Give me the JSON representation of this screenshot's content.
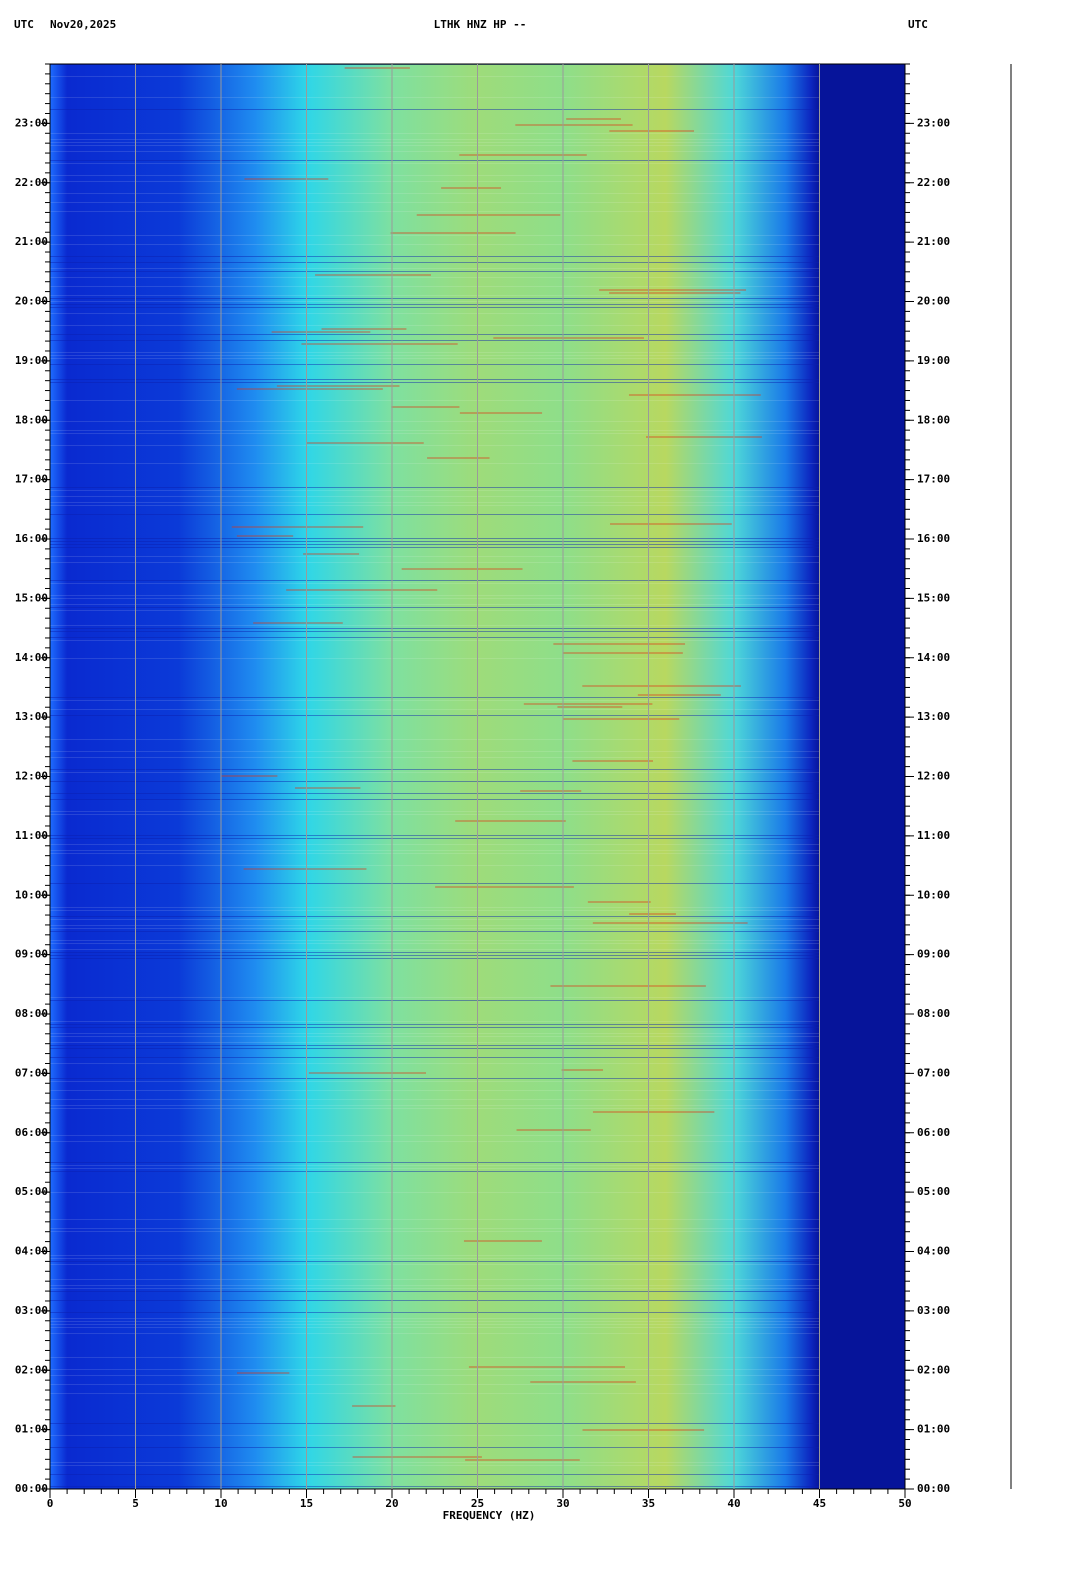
{
  "chart_data": {
    "type": "spectrogram",
    "title": "LTHK HNZ HP --",
    "left_label": "UTC",
    "date": "Nov20,2025",
    "right_label": "UTC",
    "x_label": "FREQUENCY (HZ)",
    "xlim": [
      0,
      50
    ],
    "xticks": [
      0,
      5,
      10,
      15,
      20,
      25,
      30,
      35,
      40,
      45,
      50
    ],
    "grid_xticks": [
      5,
      10,
      15,
      20,
      25,
      30,
      35,
      40,
      45
    ],
    "ylim": [
      0,
      24
    ],
    "yticks": [
      {
        "value": 0,
        "label": "00:00"
      },
      {
        "value": 1,
        "label": "01:00"
      },
      {
        "value": 2,
        "label": "02:00"
      },
      {
        "value": 3,
        "label": "03:00"
      },
      {
        "value": 4,
        "label": "04:00"
      },
      {
        "value": 5,
        "label": "05:00"
      },
      {
        "value": 6,
        "label": "06:00"
      },
      {
        "value": 7,
        "label": "07:00"
      },
      {
        "value": 8,
        "label": "08:00"
      },
      {
        "value": 9,
        "label": "09:00"
      },
      {
        "value": 10,
        "label": "10:00"
      },
      {
        "value": 11,
        "label": "11:00"
      },
      {
        "value": 12,
        "label": "12:00"
      },
      {
        "value": 13,
        "label": "13:00"
      },
      {
        "value": 14,
        "label": "14:00"
      },
      {
        "value": 15,
        "label": "15:00"
      },
      {
        "value": 16,
        "label": "16:00"
      },
      {
        "value": 17,
        "label": "17:00"
      },
      {
        "value": 18,
        "label": "18:00"
      },
      {
        "value": 19,
        "label": "19:00"
      },
      {
        "value": 20,
        "label": "20:00"
      },
      {
        "value": 21,
        "label": "21:00"
      },
      {
        "value": 22,
        "label": "22:00"
      },
      {
        "value": 23,
        "label": "23:00"
      }
    ]
  }
}
